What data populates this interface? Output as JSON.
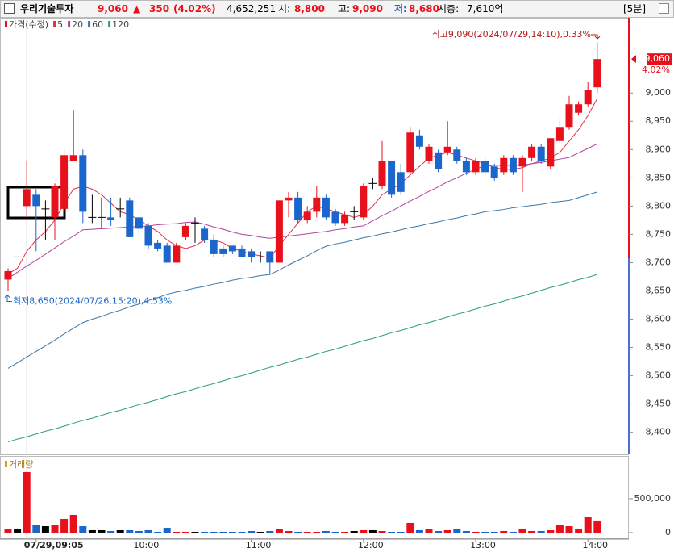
{
  "header": {
    "name": "우리기술투자",
    "price": "9,060",
    "arrow": "▲",
    "change": "350",
    "change_pct": "(4.02%)",
    "volume": "4,652,251",
    "open_label": "시:",
    "open": "8,800",
    "high_label": "고:",
    "high": "9,090",
    "low_label": "저:",
    "low": "8,680",
    "cap_label": "시총:",
    "cap": "7,610억",
    "interval": "[5분]"
  },
  "chart_data": [
    {
      "type": "candlestick",
      "legend_title": "가격(수정)",
      "up_color": "#e8111b",
      "down_color": "#1a66cc",
      "doji_color": "#000000",
      "open": [
        8670,
        8710,
        8800,
        8820,
        8795,
        8780,
        8795,
        8880,
        8890,
        8780,
        8780,
        8780,
        8795,
        8810,
        8780,
        8765,
        8735,
        8730,
        8700,
        8745,
        8770,
        8760,
        8740,
        8725,
        8730,
        8725,
        8720,
        8710,
        8720,
        8700,
        8810,
        8815,
        8775,
        8790,
        8815,
        8790,
        8770,
        8790,
        8780,
        8840,
        8835,
        8880,
        8860,
        8860,
        8925,
        8880,
        8895,
        8895,
        8900,
        8880,
        8860,
        8880,
        8870,
        8860,
        8885,
        8870,
        8885,
        8905,
        8870,
        8915,
        8940,
        8965,
        8980,
        9010
      ],
      "high": [
        8690,
        8710,
        8880,
        8830,
        8810,
        8840,
        8900,
        8970,
        8900,
        8820,
        8815,
        8815,
        8815,
        8815,
        8780,
        8770,
        8740,
        8735,
        8735,
        8770,
        8780,
        8765,
        8750,
        8730,
        8730,
        8730,
        8725,
        8720,
        8720,
        8810,
        8825,
        8825,
        8800,
        8835,
        8820,
        8795,
        8790,
        8800,
        8840,
        8850,
        8915,
        8880,
        8875,
        8940,
        8935,
        8910,
        8900,
        8950,
        8905,
        8885,
        8885,
        8885,
        8875,
        8890,
        8890,
        8890,
        8910,
        8910,
        8920,
        8955,
        8995,
        8985,
        9020,
        9090
      ],
      "low": [
        8650,
        8710,
        8780,
        8720,
        8740,
        8740,
        8790,
        8880,
        8770,
        8770,
        8760,
        8765,
        8780,
        8745,
        8750,
        8725,
        8720,
        8700,
        8700,
        8740,
        8735,
        8735,
        8710,
        8710,
        8715,
        8710,
        8700,
        8700,
        8680,
        8700,
        8780,
        8770,
        8770,
        8780,
        8775,
        8765,
        8765,
        8775,
        8775,
        8830,
        8830,
        8815,
        8820,
        8855,
        8900,
        8875,
        8860,
        8890,
        8875,
        8855,
        8855,
        8855,
        8845,
        8855,
        8855,
        8825,
        8880,
        8875,
        8865,
        8910,
        8935,
        8960,
        8975,
        9000
      ],
      "close": [
        8685,
        8710,
        8830,
        8800,
        8795,
        8835,
        8890,
        8890,
        8790,
        8780,
        8780,
        8775,
        8795,
        8745,
        8760,
        8730,
        8725,
        8700,
        8730,
        8765,
        8770,
        8740,
        8715,
        8715,
        8720,
        8710,
        8710,
        8710,
        8700,
        8810,
        8815,
        8775,
        8790,
        8815,
        8780,
        8770,
        8785,
        8790,
        8835,
        8840,
        8880,
        8820,
        8825,
        8930,
        8905,
        8905,
        8865,
        8905,
        8880,
        8860,
        8880,
        8860,
        8850,
        8885,
        8860,
        8885,
        8905,
        8880,
        8920,
        8940,
        8980,
        8980,
        9005,
        9060
      ],
      "series": [
        {
          "name": "5",
          "color": "#e0304a",
          "values": [
            8680,
            8690,
            8720,
            8740,
            8755,
            8775,
            8805,
            8830,
            8835,
            8830,
            8820,
            8805,
            8790,
            8785,
            8775,
            8765,
            8755,
            8740,
            8730,
            8725,
            8730,
            8740,
            8740,
            8735,
            8725,
            8720,
            8715,
            8712,
            8708,
            8730,
            8750,
            8770,
            8790,
            8800,
            8795,
            8790,
            8785,
            8780,
            8785,
            8800,
            8820,
            8830,
            8840,
            8855,
            8870,
            8885,
            8890,
            8895,
            8890,
            8885,
            8880,
            8875,
            8868,
            8865,
            8865,
            8868,
            8875,
            8880,
            8885,
            8895,
            8915,
            8935,
            8960,
            8990
          ]
        },
        {
          "name": "20",
          "color": "#b0449a",
          "values": [
            8672,
            8683,
            8694,
            8704,
            8715,
            8726,
            8737,
            8747,
            8758,
            8759,
            8760,
            8761,
            8762,
            8763,
            8764,
            8765,
            8767,
            8768,
            8769,
            8771,
            8772,
            8768,
            8763,
            8759,
            8754,
            8750,
            8748,
            8745,
            8743,
            8745,
            8747,
            8749,
            8751,
            8753,
            8755,
            8758,
            8760,
            8763,
            8765,
            8774,
            8783,
            8791,
            8800,
            8809,
            8817,
            8826,
            8834,
            8843,
            8850,
            8858,
            8865,
            8872,
            8872,
            8872,
            8872,
            8872,
            8875,
            8877,
            8880,
            8883,
            8886,
            8894,
            8902,
            8910
          ]
        },
        {
          "name": "60",
          "color": "#3a78a8",
          "values": [
            8513,
            8523,
            8533,
            8543,
            8553,
            8563,
            8574,
            8584,
            8594,
            8600,
            8605,
            8611,
            8616,
            8622,
            8627,
            8633,
            8638,
            8644,
            8648,
            8651,
            8655,
            8658,
            8662,
            8665,
            8669,
            8672,
            8674,
            8677,
            8679,
            8687,
            8696,
            8704,
            8712,
            8721,
            8729,
            8733,
            8736,
            8740,
            8744,
            8747,
            8751,
            8754,
            8758,
            8762,
            8765,
            8769,
            8772,
            8776,
            8779,
            8783,
            8786,
            8790,
            8792,
            8794,
            8797,
            8799,
            8801,
            8803,
            8806,
            8808,
            8810,
            8815,
            8820,
            8825
          ]
        },
        {
          "name": "120",
          "color": "#2a9a86",
          "values": [
            8383,
            8388,
            8392,
            8397,
            8402,
            8406,
            8411,
            8416,
            8421,
            8425,
            8430,
            8435,
            8439,
            8444,
            8449,
            8453,
            8458,
            8463,
            8468,
            8472,
            8477,
            8482,
            8486,
            8491,
            8496,
            8500,
            8505,
            8510,
            8515,
            8519,
            8524,
            8529,
            8533,
            8538,
            8543,
            8547,
            8552,
            8557,
            8562,
            8566,
            8571,
            8576,
            8580,
            8585,
            8590,
            8594,
            8599,
            8604,
            8609,
            8613,
            8618,
            8623,
            8627,
            8632,
            8637,
            8641,
            8646,
            8651,
            8656,
            8660,
            8665,
            8670,
            8674,
            8679
          ]
        }
      ],
      "ylim": [
        8361,
        9133
      ],
      "yticks": [
        {
          "value": 8400,
          "label": "8,400"
        },
        {
          "value": 8450,
          "label": "8,450"
        },
        {
          "value": 8500,
          "label": "8,500"
        },
        {
          "value": 8550,
          "label": "8,550"
        },
        {
          "value": 8600,
          "label": "8,600"
        },
        {
          "value": 8650,
          "label": "8,650"
        },
        {
          "value": 8700,
          "label": "8,700"
        },
        {
          "value": 8750,
          "label": "8,750"
        },
        {
          "value": 8800,
          "label": "8,800"
        },
        {
          "value": 8850,
          "label": "8,850"
        },
        {
          "value": 8900,
          "label": "8,900"
        },
        {
          "value": 8950,
          "label": "8,950"
        },
        {
          "value": 9000,
          "label": "9,000"
        }
      ],
      "high_note": "최고9,090(2024/07/29,14:10),0.33%",
      "low_note": "최저8,650(2024/07/26,15:20),4.53%",
      "last_label": "9,060",
      "last_pct": "4.02%"
    },
    {
      "type": "volume",
      "label": "거래량",
      "categories": [
        null,
        null,
        null,
        "07/29,09:05",
        null,
        null,
        null,
        null,
        null,
        null,
        null,
        null,
        null,
        null,
        "10:00",
        null,
        null,
        null,
        null,
        null,
        null,
        null,
        null,
        null,
        null,
        null,
        "11:00",
        null,
        null,
        null,
        null,
        null,
        null,
        null,
        null,
        null,
        null,
        null,
        "12:00",
        null,
        null,
        null,
        null,
        null,
        null,
        null,
        null,
        null,
        null,
        null,
        "13:00",
        null,
        null,
        null,
        null,
        null,
        null,
        null,
        null,
        null,
        null,
        null,
        "14:00",
        null
      ],
      "values": [
        48000,
        60000,
        893000,
        119000,
        95000,
        119000,
        202000,
        262000,
        95000,
        36000,
        36000,
        24000,
        36000,
        36000,
        24000,
        36000,
        12000,
        71000,
        12000,
        12000,
        12000,
        12000,
        12000,
        12000,
        12000,
        12000,
        24000,
        12000,
        24000,
        48000,
        24000,
        12000,
        12000,
        12000,
        24000,
        12000,
        12000,
        24000,
        36000,
        36000,
        24000,
        12000,
        12000,
        143000,
        36000,
        48000,
        24000,
        36000,
        48000,
        24000,
        12000,
        12000,
        12000,
        24000,
        12000,
        60000,
        24000,
        24000,
        36000,
        119000,
        95000,
        60000,
        226000,
        179000
      ],
      "ylim": [
        0,
        1130000
      ],
      "yticks": [
        0,
        {
          "value": 500000,
          "label": "500,000"
        }
      ]
    }
  ]
}
